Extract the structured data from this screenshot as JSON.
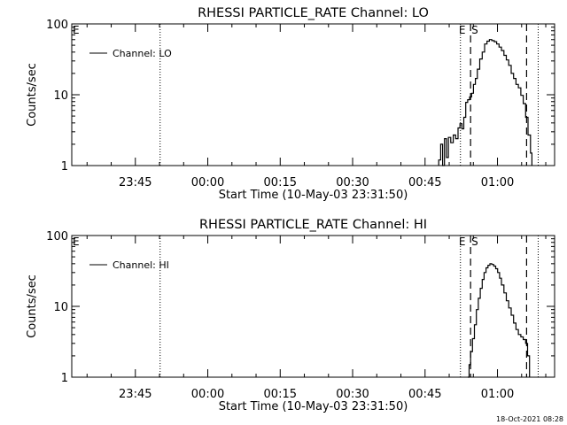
{
  "colors": {
    "background": "#ffffff",
    "foreground": "#000000"
  },
  "footer_timestamp": "18-Oct-2021 08:28",
  "chart_data": [
    {
      "type": "line",
      "title": "RHESSI PARTICLE_RATE Channel: LO",
      "xlabel": "Start Time (10-May-03 23:31:50)",
      "ylabel": "Counts/sec",
      "y_scale": "log",
      "ylim": [
        1,
        100
      ],
      "y_ticks": [
        1,
        10,
        100
      ],
      "y_tick_labels": [
        "1",
        "10",
        "100"
      ],
      "xlim_minutes": [
        0,
        100
      ],
      "x_ticks": [
        {
          "minute": 13.17,
          "label": "23:45"
        },
        {
          "minute": 28.17,
          "label": "00:00"
        },
        {
          "minute": 43.17,
          "label": "00:15"
        },
        {
          "minute": 58.17,
          "label": "00:30"
        },
        {
          "minute": 73.17,
          "label": "00:45"
        },
        {
          "minute": 88.17,
          "label": "01:00"
        }
      ],
      "legend": {
        "placement": "top-left",
        "entries": [
          "Channel: LO"
        ]
      },
      "markers": {
        "E_left": {
          "minute": 0,
          "label": "E"
        },
        "E_right": {
          "minute": 80.9,
          "label": "E"
        },
        "S_dashed": {
          "minute": 82.6,
          "label": "S"
        },
        "dotted_lines": [
          18.3,
          80.5,
          96.6
        ],
        "dashed_lines": [
          82.6,
          94.2
        ]
      },
      "series": [
        {
          "name": "Channel: LO",
          "x": [
            76.0,
            76.4,
            76.8,
            77.2,
            77.6,
            78.0,
            78.5,
            79.0,
            79.5,
            80.0,
            80.4,
            80.8,
            81.2,
            81.6,
            82.0,
            82.4,
            82.8,
            83.2,
            83.6,
            84.0,
            84.5,
            85.0,
            85.5,
            86.0,
            86.5,
            87.0,
            87.5,
            88.0,
            88.5,
            89.0,
            89.5,
            90.0,
            90.5,
            91.0,
            91.5,
            92.0,
            92.5,
            93.0,
            93.5,
            94.0,
            94.5,
            95.0,
            95.3
          ],
          "y": [
            1.2,
            2.0,
            1.0,
            2.4,
            1.3,
            2.5,
            2.1,
            2.7,
            2.4,
            3.4,
            3.9,
            3.3,
            4.8,
            7.8,
            8.5,
            9.3,
            10.5,
            14,
            17,
            23,
            32,
            40,
            52,
            57,
            60,
            58,
            56,
            52,
            47,
            42,
            36,
            31,
            26,
            20,
            17,
            14,
            12.5,
            9.8,
            7.5,
            4.8,
            2.7,
            1.5,
            1.0
          ]
        }
      ]
    },
    {
      "type": "line",
      "title": "RHESSI PARTICLE_RATE Channel: HI",
      "xlabel": "Start Time (10-May-03 23:31:50)",
      "ylabel": "Counts/sec",
      "y_scale": "log",
      "ylim": [
        1,
        100
      ],
      "y_ticks": [
        1,
        10,
        100
      ],
      "y_tick_labels": [
        "1",
        "10",
        "100"
      ],
      "xlim_minutes": [
        0,
        100
      ],
      "x_ticks": [
        {
          "minute": 13.17,
          "label": "23:45"
        },
        {
          "minute": 28.17,
          "label": "00:00"
        },
        {
          "minute": 43.17,
          "label": "00:15"
        },
        {
          "minute": 58.17,
          "label": "00:30"
        },
        {
          "minute": 73.17,
          "label": "00:45"
        },
        {
          "minute": 88.17,
          "label": "01:00"
        }
      ],
      "legend": {
        "placement": "top-left",
        "entries": [
          "Channel: HI"
        ]
      },
      "markers": {
        "E_left": {
          "minute": 0,
          "label": "E"
        },
        "E_right": {
          "minute": 80.9,
          "label": "E"
        },
        "S_dashed": {
          "minute": 82.6,
          "label": "S"
        },
        "dotted_lines": [
          18.3,
          80.5,
          96.6
        ],
        "dashed_lines": [
          82.6,
          94.2
        ]
      },
      "series": [
        {
          "name": "Channel: HI",
          "x": [
            82.0,
            82.3,
            82.6,
            83.0,
            83.4,
            83.8,
            84.2,
            84.6,
            85.0,
            85.4,
            85.8,
            86.2,
            86.6,
            87.0,
            87.4,
            87.8,
            88.2,
            88.6,
            89.0,
            89.5,
            90.0,
            90.5,
            91.0,
            91.5,
            92.0,
            92.5,
            93.0,
            93.5,
            94.0,
            94.4,
            94.8
          ],
          "y": [
            1.0,
            1.5,
            2.3,
            3.5,
            5.5,
            9,
            13,
            18,
            24,
            30,
            35,
            38,
            40,
            39,
            37,
            34,
            30,
            25,
            20,
            15.5,
            12,
            9.5,
            7.5,
            5.8,
            4.7,
            4.0,
            3.7,
            3.4,
            3.0,
            2.0,
            1.0
          ]
        }
      ]
    }
  ]
}
